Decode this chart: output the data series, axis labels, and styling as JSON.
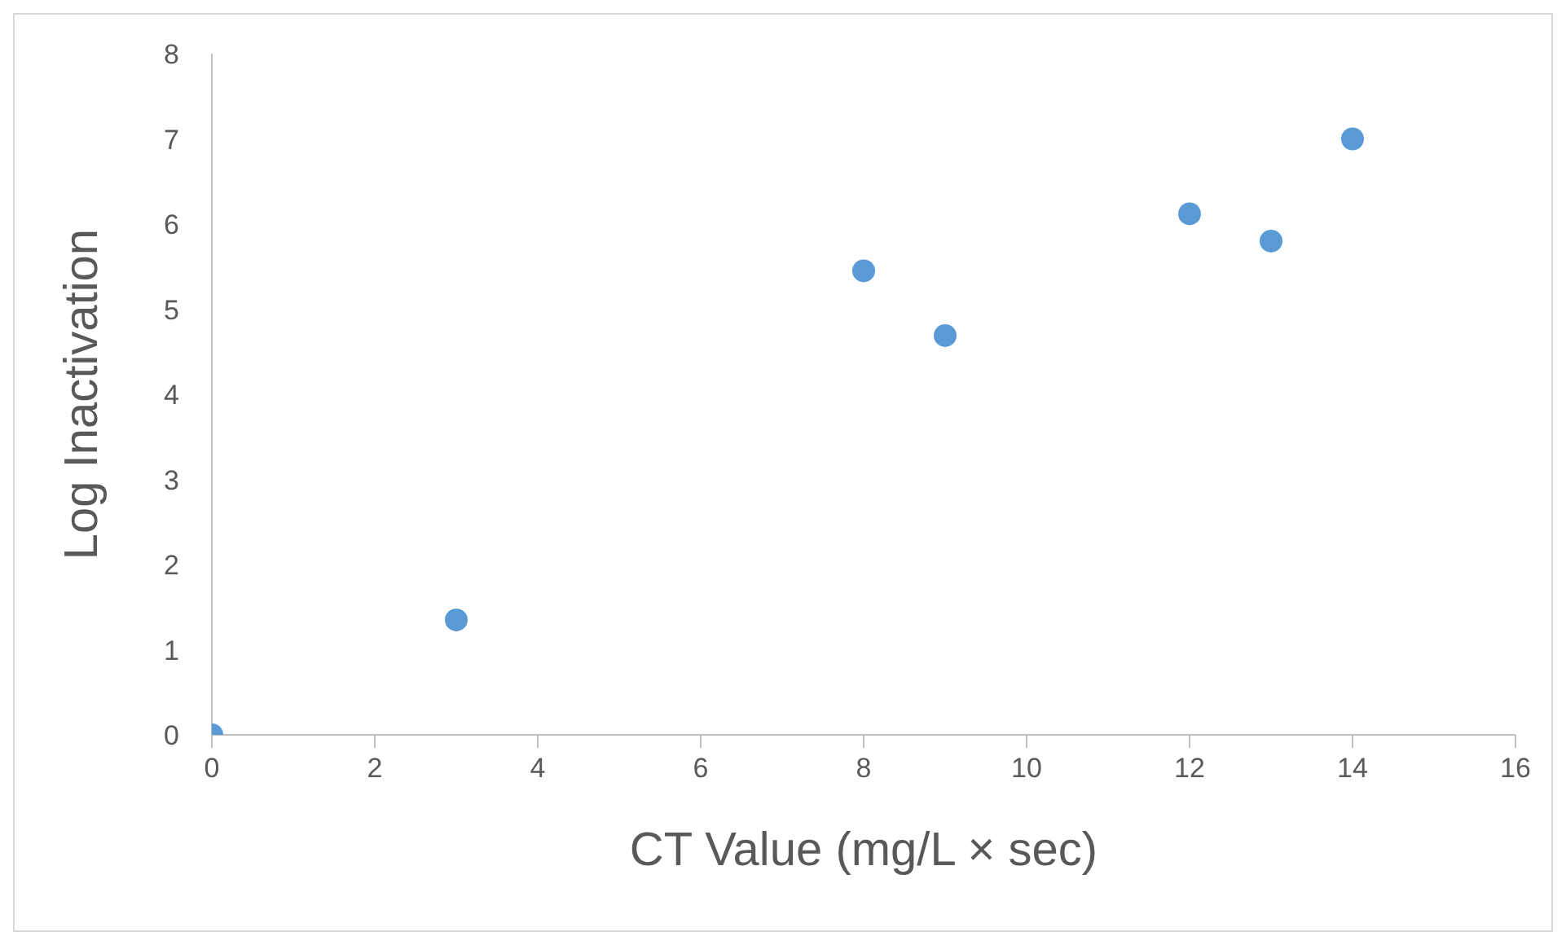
{
  "chart_data": {
    "type": "scatter",
    "xlabel": "CT Value (mg/L × sec)",
    "ylabel": "Log Inactivation",
    "x": [
      0,
      3,
      8,
      9,
      12,
      13,
      14
    ],
    "series": [
      {
        "color": "#5b9bd5",
        "values": [
          0,
          1.35,
          5.45,
          4.69,
          6.12,
          5.8,
          7.0
        ]
      }
    ],
    "xlim": [
      0,
      16
    ],
    "xticks": [
      0,
      2,
      4,
      6,
      8,
      10,
      12,
      14,
      16
    ],
    "ylim": [
      0,
      8
    ],
    "yticks": [
      0,
      1,
      2,
      3,
      4,
      5,
      6,
      7,
      8
    ],
    "grid": false,
    "legend": false,
    "marker": "circle"
  }
}
